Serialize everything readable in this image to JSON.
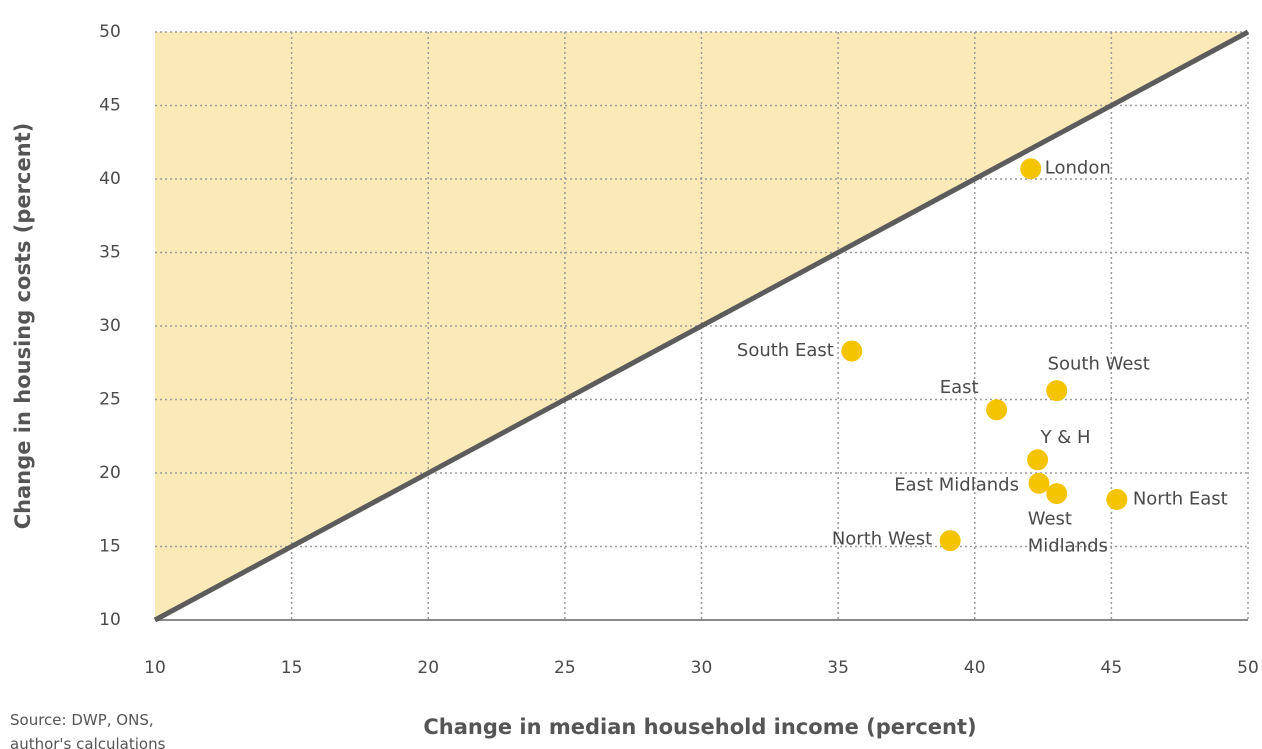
{
  "chart_data": {
    "type": "scatter",
    "x_label": "Change in median household income (percent)",
    "y_label": "Change in housing costs (percent)",
    "source": "Source: DWP, ONS, author's calculations",
    "labels": [
      "London",
      "South East",
      "South West",
      "East",
      "Y & H",
      "East Midlands",
      "West Midlands",
      "North East",
      "North West"
    ],
    "x": [
      42.05,
      35.5,
      43.0,
      40.8,
      42.3,
      42.35,
      43.0,
      45.2,
      39.1
    ],
    "values": [
      40.7,
      28.3,
      25.6,
      24.3,
      20.9,
      19.3,
      18.6,
      18.2,
      15.4
    ],
    "color": "#f5c400",
    "shade_color": "#fbe9b7",
    "line_color": "#5c5c5c",
    "xlim": [
      10,
      50
    ],
    "ylim": [
      10,
      50
    ],
    "xticks": [
      10,
      15,
      20,
      25,
      30,
      35,
      40,
      45,
      50
    ],
    "yticks": [
      10,
      15,
      20,
      25,
      30,
      35,
      40,
      45,
      50
    ],
    "grid": true
  }
}
